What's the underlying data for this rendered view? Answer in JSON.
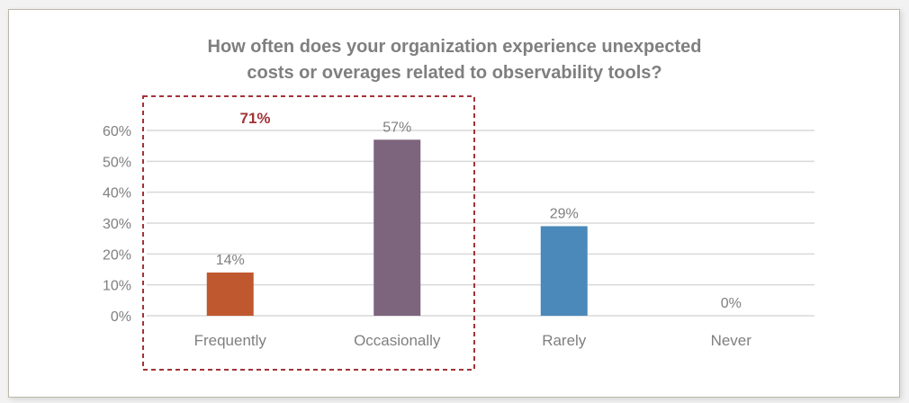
{
  "chart_data": {
    "type": "bar",
    "title_lines": [
      "How often does your organization experience unexpected",
      "costs or overages related to observability tools?"
    ],
    "categories": [
      "Frequently",
      "Occasionally",
      "Rarely",
      "Never"
    ],
    "values": [
      14,
      57,
      29,
      0
    ],
    "data_labels": [
      "14%",
      "57%",
      "29%",
      "0%"
    ],
    "colors": [
      "#C0582F",
      "#7D657D",
      "#4A89B9",
      "#A5A5A5"
    ],
    "ylim": [
      0,
      60
    ],
    "yticks": [
      "0%",
      "10%",
      "20%",
      "30%",
      "40%",
      "50%",
      "60%"
    ],
    "grid": true,
    "xlabel": "",
    "ylabel": "",
    "annotation": {
      "label": "71%",
      "color": "#A33338",
      "groups": [
        "Frequently",
        "Occasionally"
      ],
      "style": "dashed box"
    }
  }
}
